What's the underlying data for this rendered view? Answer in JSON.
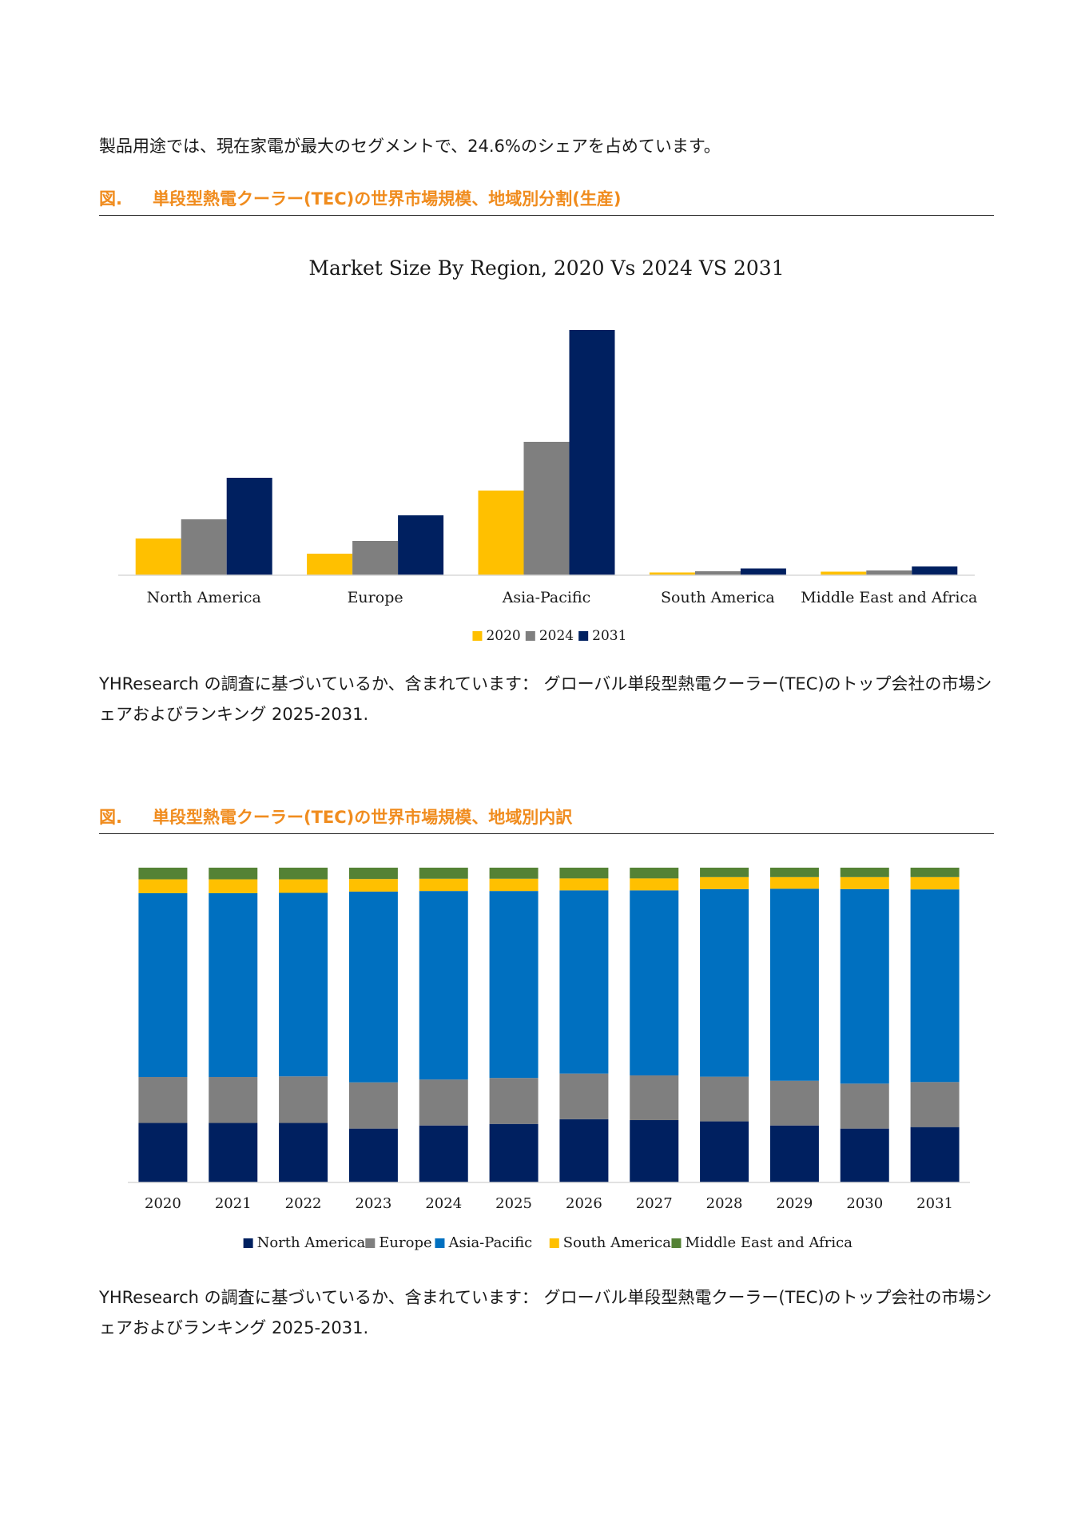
{
  "intro_text": "製品用途では、現在家電が最大のセグメントで、24.6%のシェアを占めています。",
  "accent_color": "#f08c1e",
  "figure1": {
    "label": "図.",
    "title": "単段型熱電クーラー(TEC)の世界市場規模、地域別分割(生産)",
    "chart_data": {
      "type": "bar",
      "title": "Market Size By Region, 2020 Vs 2024 VS 2031",
      "categories": [
        "North America",
        "Europe",
        "Asia-Pacific",
        "South America",
        "Middle East and Africa"
      ],
      "series": [
        {
          "name": "2020",
          "color": "#ffc000",
          "values": [
            4.6,
            2.7,
            10.6,
            0.35,
            0.45
          ]
        },
        {
          "name": "2024",
          "color": "#7f7f7f",
          "values": [
            7.0,
            4.3,
            16.7,
            0.5,
            0.6
          ]
        },
        {
          "name": "2031",
          "color": "#002060",
          "values": [
            12.2,
            7.5,
            30.7,
            0.85,
            1.1
          ]
        }
      ],
      "ylim": [
        0,
        32
      ],
      "axis_labels_visible": false,
      "grid": false,
      "legend_position": "bottom"
    },
    "footnote": "YHResearch の調査に基づいているか、含まれています： グローバル単段型熱電クーラー(TEC)のトップ会社の市場シェアおよびランキング 2025-2031."
  },
  "figure2": {
    "label": "図.",
    "title": "単段型熱電クーラー(TEC)の世界市場規模、地域別内訳",
    "chart_data": {
      "type": "bar",
      "stacked": "percent",
      "categories": [
        "2020",
        "2021",
        "2022",
        "2023",
        "2024",
        "2025",
        "2026",
        "2027",
        "2028",
        "2029",
        "2030",
        "2031"
      ],
      "series": [
        {
          "name": "North America",
          "color": "#002060",
          "values": [
            18.9,
            18.9,
            18.9,
            17.1,
            18.1,
            18.6,
            20.1,
            19.8,
            19.4,
            18.1,
            17.1,
            17.6
          ]
        },
        {
          "name": "Europe",
          "color": "#7f7f7f",
          "values": [
            14.6,
            14.6,
            14.8,
            14.7,
            14.6,
            14.6,
            14.5,
            14.2,
            14.2,
            14.2,
            14.3,
            14.3
          ]
        },
        {
          "name": "Asia-Pacific",
          "color": "#0070c0",
          "values": [
            58.4,
            58.4,
            58.3,
            60.6,
            59.9,
            59.4,
            58.2,
            58.8,
            59.6,
            61.0,
            61.8,
            61.2
          ]
        },
        {
          "name": "South America",
          "color": "#ffc000",
          "values": [
            4.4,
            4.4,
            4.3,
            4.0,
            3.9,
            3.9,
            3.8,
            3.8,
            3.8,
            3.7,
            3.8,
            3.9
          ]
        },
        {
          "name": "Middle East and Africa",
          "color": "#548235",
          "values": [
            3.7,
            3.7,
            3.7,
            3.6,
            3.5,
            3.5,
            3.4,
            3.4,
            3.0,
            3.0,
            3.0,
            3.0
          ]
        }
      ],
      "ylim": [
        0,
        100
      ],
      "axis_labels_visible": false,
      "grid": false,
      "legend_position": "bottom"
    },
    "footnote": "YHResearch の調査に基づいているか、含まれています： グローバル単段型熱電クーラー(TEC)のトップ会社の市場シェアおよびランキング 2025-2031."
  }
}
